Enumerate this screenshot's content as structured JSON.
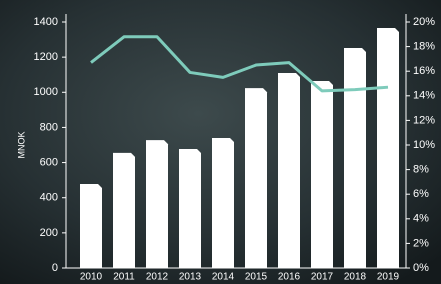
{
  "chart_data": {
    "type": "bar",
    "ylabel": "MNOK",
    "categories": [
      "2010",
      "2011",
      "2012",
      "2013",
      "2014",
      "2015",
      "2016",
      "2017",
      "2018",
      "2019"
    ],
    "series": [
      {
        "type": "bar",
        "color": "#ffffff",
        "values": [
          478,
          655,
          728,
          677,
          740,
          1024,
          1110,
          1064,
          1252,
          1366
        ]
      },
      {
        "type": "line",
        "axis": "y2",
        "color": "#7ecbbb",
        "values": [
          16.7,
          18.8,
          18.8,
          15.9,
          15.5,
          16.5,
          16.7,
          14.4,
          14.5,
          14.7
        ]
      }
    ],
    "ylim": [
      0,
      1400
    ],
    "yticks": [
      0,
      200,
      400,
      600,
      800,
      1000,
      1200,
      1400
    ],
    "y2lim": [
      0,
      20
    ],
    "y2ticks": [
      {
        "value": 0,
        "label": "0%"
      },
      {
        "value": 2,
        "label": "2%"
      },
      {
        "value": 4,
        "label": "4%"
      },
      {
        "value": 6,
        "label": "6%"
      },
      {
        "value": 8,
        "label": "8%"
      },
      {
        "value": 10,
        "label": "10%"
      },
      {
        "value": 12,
        "label": "12%"
      },
      {
        "value": 14,
        "label": "14%"
      },
      {
        "value": 16,
        "label": "16%"
      },
      {
        "value": 18,
        "label": "18%"
      },
      {
        "value": 20,
        "label": "20%"
      }
    ]
  }
}
